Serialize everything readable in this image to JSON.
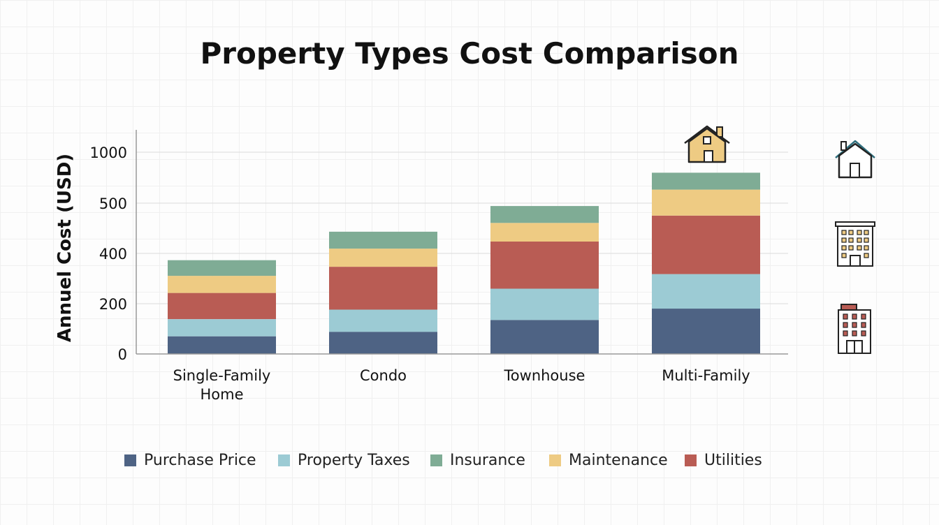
{
  "chart_data": {
    "type": "bar",
    "stacked": true,
    "title": "Property Types Cost Comparison",
    "xlabel": "",
    "ylabel": "Annuel Cost (USD)",
    "y_ticks": [
      "0",
      "200",
      "400",
      "500",
      "1000"
    ],
    "categories": [
      [
        "Single-Family",
        "Home"
      ],
      [
        "Condo"
      ],
      [
        "Townhouse"
      ],
      [
        "Multi-Family"
      ]
    ],
    "series": [
      {
        "name": "Purchase Price",
        "color": "#4e6384",
        "values": [
          70,
          88,
          135,
          180
        ]
      },
      {
        "name": "Property Taxes",
        "color": "#9ccbd4",
        "values": [
          68,
          88,
          124,
          137
        ]
      },
      {
        "name": "Utilities",
        "color": "#b95c54",
        "values": [
          104,
          170,
          187,
          232
        ]
      },
      {
        "name": "Maintenance",
        "color": "#eecb83",
        "values": [
          68,
          72,
          74,
          103
        ]
      },
      {
        "name": "Insurance",
        "color": "#7fac95",
        "values": [
          62,
          67,
          67,
          67
        ]
      }
    ],
    "legend_order": [
      "Purchase Price",
      "Property Taxes",
      "Insurance",
      "Maintenance",
      "Utilities"
    ],
    "legend_position": "bottom",
    "grid": true,
    "icons": [
      "house-icon",
      "house-icon",
      "apartment-building-icon",
      "office-building-icon"
    ]
  }
}
